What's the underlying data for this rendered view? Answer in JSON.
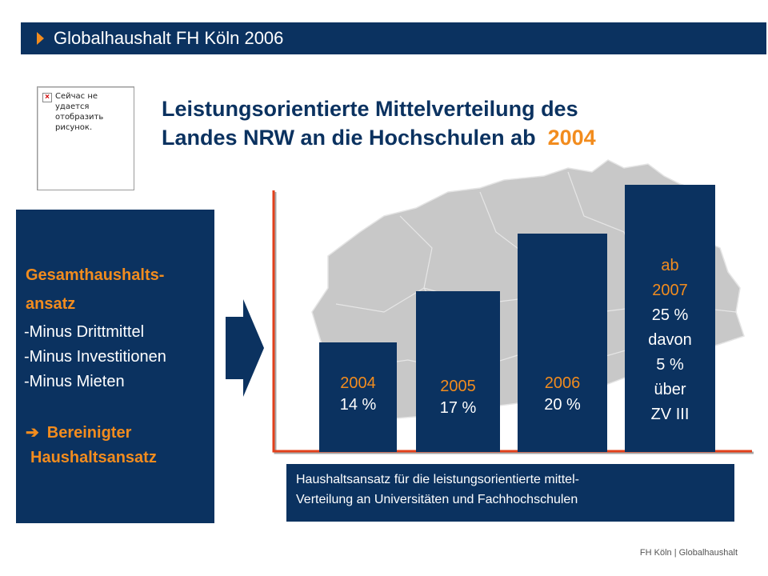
{
  "header": {
    "title": "Globalhaushalt FH Köln 2006",
    "accent": "#f28c1e",
    "background": "#0b3260"
  },
  "placeholder_image": {
    "icon": "broken-image-icon",
    "text": "Сейчас не удается отобразить рисунок."
  },
  "title": {
    "line1": "Leistungsorientierte Mittelverteilung des",
    "line2_prefix": "Landes NRW an die Hochschulen ab",
    "line2_year": "2004"
  },
  "left_panel": {
    "heading_line1": "Gesamthaushalts-",
    "heading_line2": "ansatz",
    "items": [
      "-Minus Drittmittel",
      "-Minus Investitionen",
      "-Minus Mieten"
    ],
    "result_icon": "right-arrow-icon",
    "result_line1": "Bereinigter",
    "result_line2": "Haushaltsansatz"
  },
  "bars": [
    {
      "year": "2004",
      "percent": "14 %",
      "extra": []
    },
    {
      "year": "2005",
      "percent": "17 %",
      "extra": []
    },
    {
      "year": "2006",
      "percent": "20 %",
      "extra": []
    },
    {
      "year_prefix": "ab",
      "year": "2007",
      "percent": "25 %",
      "extra": [
        "davon",
        "5 %",
        "über",
        "ZV III"
      ]
    }
  ],
  "caption": {
    "line1": "Haushaltsansatz für die leistungsorientierte mittel-",
    "line2": "Verteilung an Universitäten und Fachhochschulen"
  },
  "footer": {
    "text": "FH Köln  |  Globalhaushalt"
  }
}
